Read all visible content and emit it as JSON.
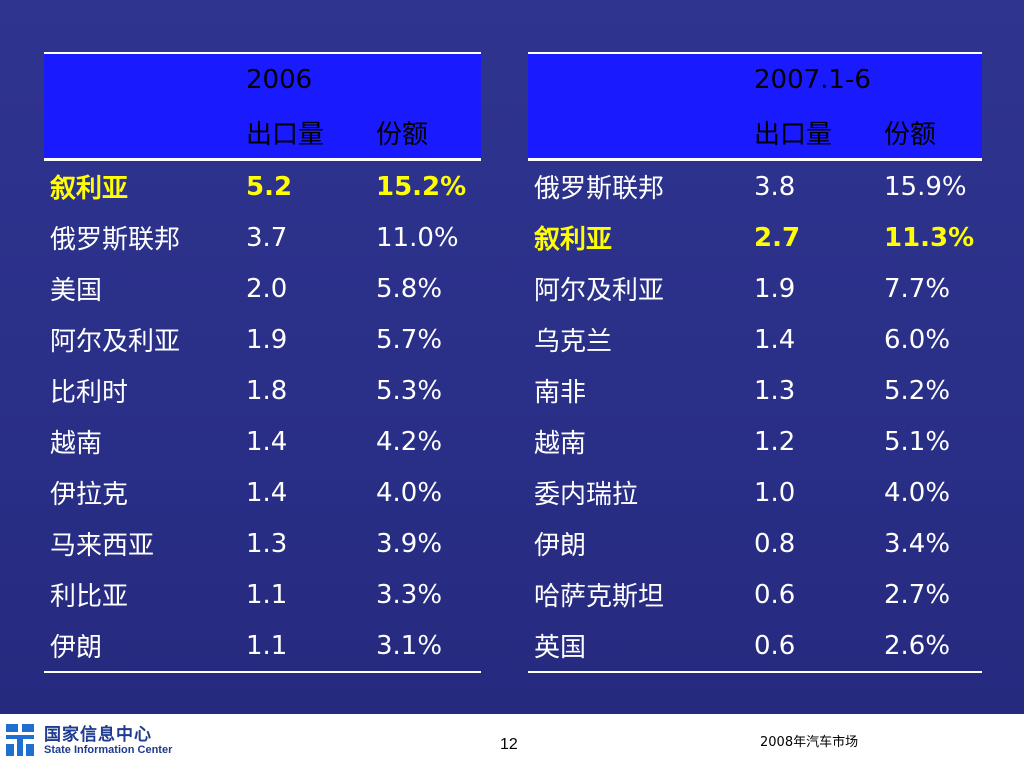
{
  "left_table": {
    "year": "2006",
    "col_volume": "出口量",
    "col_share": "份额",
    "rows": [
      {
        "country": "叙利亚",
        "volume": "5.2",
        "share": "15.2%",
        "highlight": true
      },
      {
        "country": "俄罗斯联邦",
        "volume": "3.7",
        "share": "11.0%"
      },
      {
        "country": "美国",
        "volume": "2.0",
        "share": "5.8%"
      },
      {
        "country": "阿尔及利亚",
        "volume": "1.9",
        "share": "5.7%"
      },
      {
        "country": "比利时",
        "volume": "1.8",
        "share": "5.3%"
      },
      {
        "country": "越南",
        "volume": "1.4",
        "share": "4.2%"
      },
      {
        "country": "伊拉克",
        "volume": "1.4",
        "share": "4.0%"
      },
      {
        "country": "马来西亚",
        "volume": "1.3",
        "share": "3.9%"
      },
      {
        "country": "利比亚",
        "volume": "1.1",
        "share": "3.3%"
      },
      {
        "country": "伊朗",
        "volume": "1.1",
        "share": "3.1%"
      }
    ]
  },
  "right_table": {
    "year": "2007.1-6",
    "col_volume": "出口量",
    "col_share": "份额",
    "rows": [
      {
        "country": "俄罗斯联邦",
        "volume": "3.8",
        "share": "15.9%"
      },
      {
        "country": "叙利亚",
        "volume": "2.7",
        "share": "11.3%",
        "highlight": true
      },
      {
        "country": "阿尔及利亚",
        "volume": "1.9",
        "share": "7.7%"
      },
      {
        "country": "乌克兰",
        "volume": "1.4",
        "share": "6.0%"
      },
      {
        "country": "南非",
        "volume": "1.3",
        "share": "5.2%"
      },
      {
        "country": "越南",
        "volume": "1.2",
        "share": "5.1%"
      },
      {
        "country": "委内瑞拉",
        "volume": "1.0",
        "share": "4.0%"
      },
      {
        "country": "伊朗",
        "volume": "0.8",
        "share": "3.4%"
      },
      {
        "country": "哈萨克斯坦",
        "volume": "0.6",
        "share": "2.7%"
      },
      {
        "country": "英国",
        "volume": "0.6",
        "share": "2.6%"
      }
    ]
  },
  "footer": {
    "org_cn": "国家信息中心",
    "org_en": "State Information Center",
    "page_number": "12",
    "title": "2008年汽车市场",
    "logo_icon": "sic-logo-icon"
  },
  "colors": {
    "background": "#2b308a",
    "header_fill": "#1a1aff",
    "highlight_text": "#ffff00",
    "footer_bg": "#ffffff"
  }
}
